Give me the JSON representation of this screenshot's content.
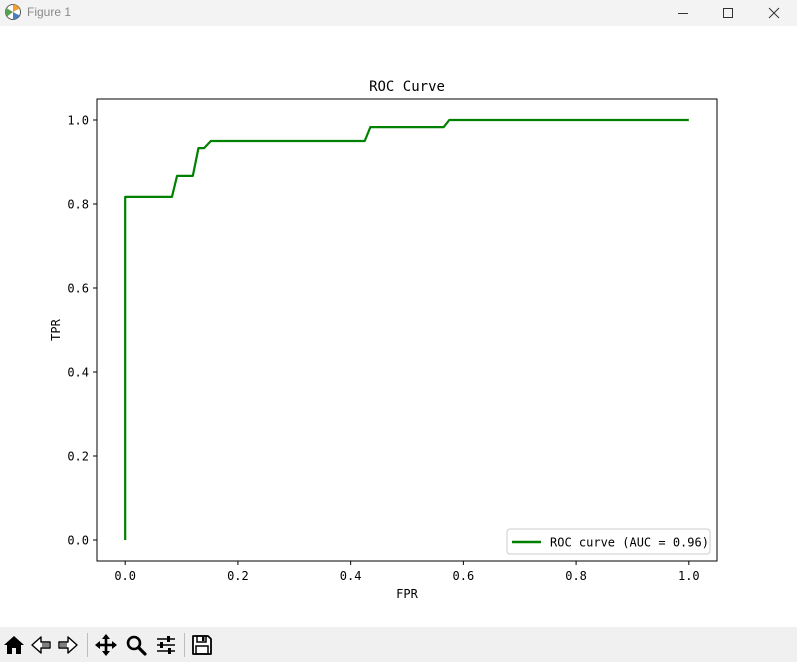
{
  "window": {
    "title": "Figure 1",
    "controls": [
      "minimize",
      "maximize",
      "close"
    ]
  },
  "toolbar": {
    "buttons": [
      "home-icon",
      "back-icon",
      "forward-icon",
      "pan-icon",
      "zoom-icon",
      "configure-subplots-icon",
      "save-icon"
    ]
  },
  "colors": {
    "curve": "#008000",
    "titlebar": "#f3f3f3",
    "toolbar": "#f0f0f0"
  },
  "chart_data": {
    "type": "line",
    "title": "ROC Curve",
    "xlabel": "FPR",
    "ylabel": "TPR",
    "xlim": [
      -0.05,
      1.05
    ],
    "ylim": [
      -0.05,
      1.05
    ],
    "xticks": [
      0.0,
      0.2,
      0.4,
      0.6,
      0.8,
      1.0
    ],
    "yticks": [
      0.0,
      0.2,
      0.4,
      0.6,
      0.8,
      1.0
    ],
    "xtick_labels": [
      "0.0",
      "0.2",
      "0.4",
      "0.6",
      "0.8",
      "1.0"
    ],
    "ytick_labels": [
      "0.0",
      "0.2",
      "0.4",
      "0.6",
      "0.8",
      "1.0"
    ],
    "grid": false,
    "legend": {
      "location": "lower-right"
    },
    "series": [
      {
        "name": "ROC curve (AUC = 0.96)",
        "color": "#008000",
        "x": [
          0.0,
          0.0,
          0.083,
          0.092,
          0.12,
          0.13,
          0.14,
          0.152,
          0.425,
          0.435,
          0.565,
          0.575,
          1.0
        ],
        "y": [
          0.0,
          0.817,
          0.817,
          0.867,
          0.867,
          0.933,
          0.933,
          0.95,
          0.95,
          0.983,
          0.983,
          1.0,
          1.0
        ]
      }
    ]
  }
}
